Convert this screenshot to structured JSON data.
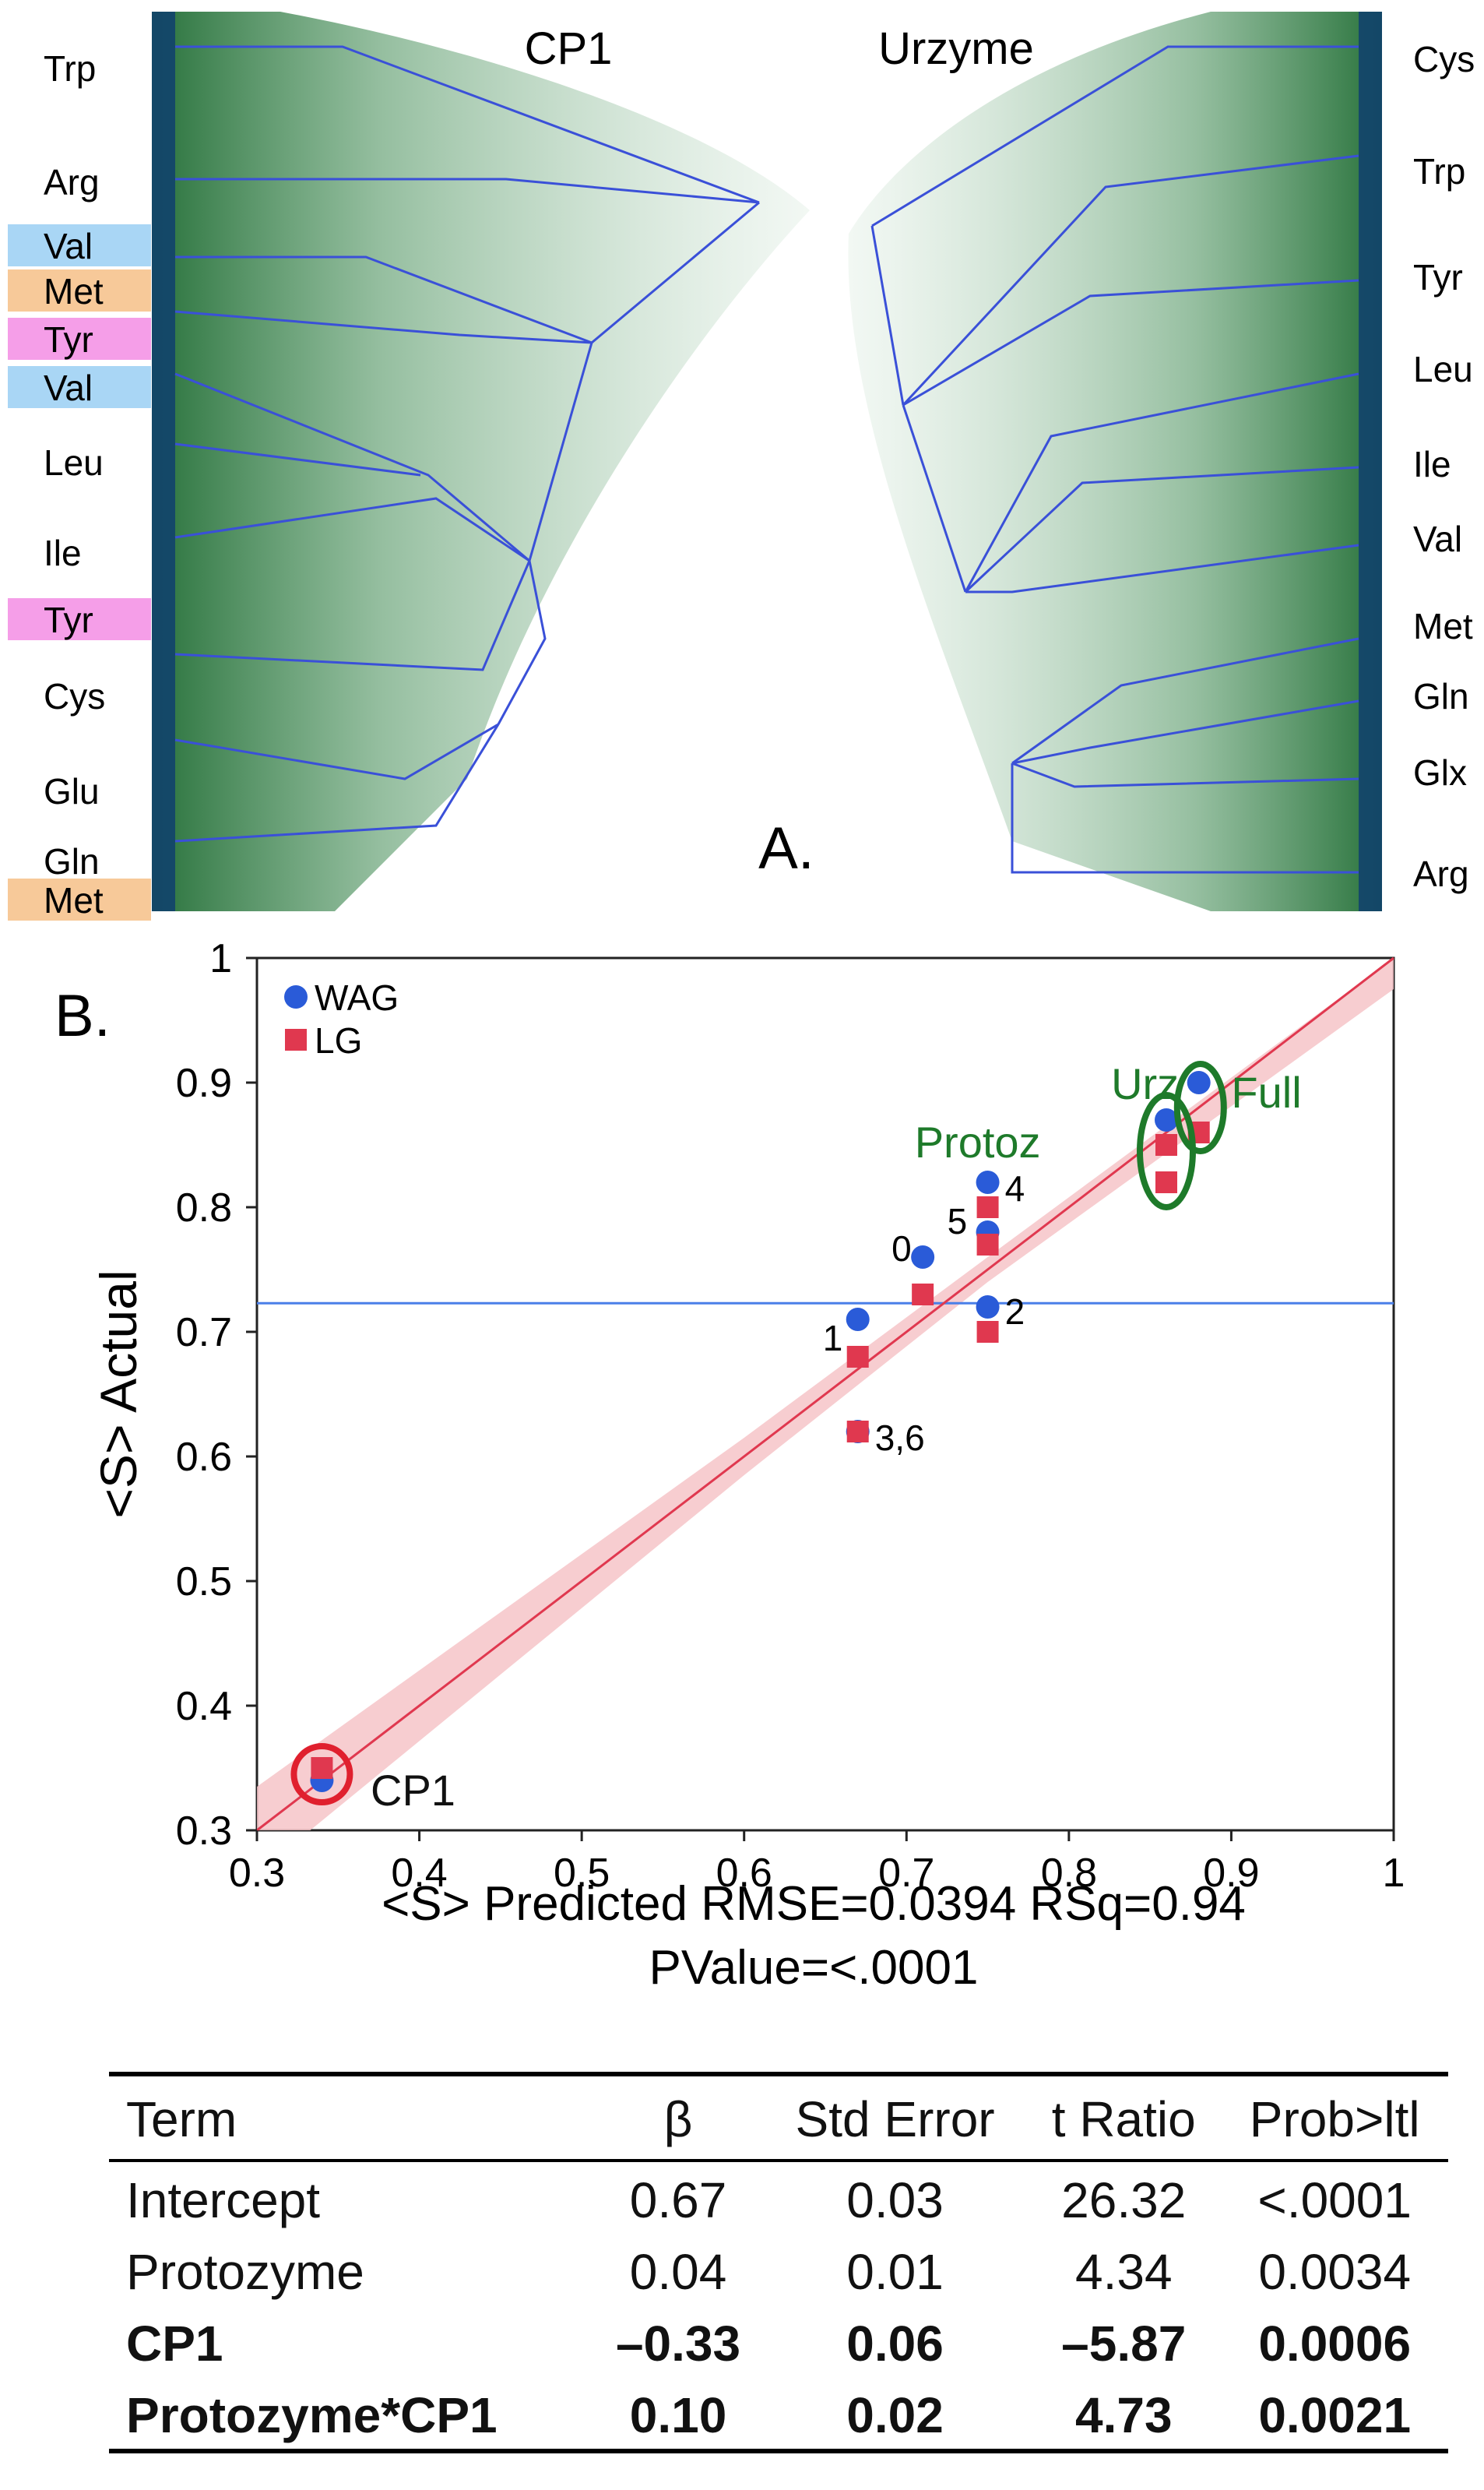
{
  "panel_a": {
    "title_left": "CP1",
    "title_right": "Urzyme",
    "panel_label": "A.",
    "left_labels": [
      {
        "text": "Trp",
        "highlight": ""
      },
      {
        "text": "Arg",
        "highlight": ""
      },
      {
        "text": "Val",
        "highlight": "#a9d6f5"
      },
      {
        "text": "Met",
        "highlight": "#f7c999"
      },
      {
        "text": "Tyr",
        "highlight": "#f59ee8"
      },
      {
        "text": "Val",
        "highlight": "#a9d6f5"
      },
      {
        "text": "Leu",
        "highlight": ""
      },
      {
        "text": "Ile",
        "highlight": ""
      },
      {
        "text": "Tyr",
        "highlight": "#f59ee8"
      },
      {
        "text": "Cys",
        "highlight": ""
      },
      {
        "text": "Glu",
        "highlight": ""
      },
      {
        "text": "Gln",
        "highlight": ""
      },
      {
        "text": "Met",
        "highlight": "#f7c999"
      }
    ],
    "right_labels": [
      "Cys",
      "Trp",
      "Tyr",
      "Leu",
      "Ile",
      "Val",
      "Met",
      "Gln",
      "Glx",
      "Arg"
    ],
    "colors": {
      "tree_line": "#3a50d8",
      "cloud": "#7fb38a",
      "cloud_dark": "#1e6b32",
      "tip_dark": "#0f3f6e"
    }
  },
  "chart_data": {
    "type": "scatter",
    "panel_label": "B.",
    "ylabel": "<S> Actual",
    "xlabel_line1": "<S> Predicted RMSE=0.0394 RSq=0.94",
    "xlabel_line2": "PValue=<.0001",
    "xlim": [
      0.3,
      1
    ],
    "ylim": [
      0.3,
      1
    ],
    "x_ticks": [
      "0.3",
      "0.4",
      "0.5",
      "0.6",
      "0.7",
      "0.8",
      "0.9",
      "1"
    ],
    "y_ticks": [
      "0.3",
      "0.4",
      "0.5",
      "0.6",
      "0.7",
      "0.8",
      "0.9",
      "1"
    ],
    "mean_line_y": 0.723,
    "fit_line": {
      "x": [
        0.3,
        1.0
      ],
      "y": [
        0.3,
        1.0
      ]
    },
    "series": [
      {
        "name": "WAG",
        "color": "#2a5bd8",
        "marker": "circle",
        "points": [
          [
            0.34,
            0.34
          ],
          [
            0.67,
            0.71
          ],
          [
            0.71,
            0.76
          ],
          [
            0.75,
            0.72
          ],
          [
            0.75,
            0.78
          ],
          [
            0.75,
            0.82
          ],
          [
            0.67,
            0.62
          ],
          [
            0.86,
            0.87
          ],
          [
            0.88,
            0.9
          ]
        ]
      },
      {
        "name": "LG",
        "color": "#e0384f",
        "marker": "square",
        "points": [
          [
            0.34,
            0.35
          ],
          [
            0.67,
            0.68
          ],
          [
            0.71,
            0.73
          ],
          [
            0.75,
            0.7
          ],
          [
            0.75,
            0.77
          ],
          [
            0.75,
            0.8
          ],
          [
            0.67,
            0.62
          ],
          [
            0.86,
            0.82
          ],
          [
            0.86,
            0.85
          ],
          [
            0.88,
            0.86
          ]
        ]
      }
    ],
    "point_labels": [
      {
        "text": "0",
        "x": 0.71,
        "y": 0.76
      },
      {
        "text": "1",
        "x": 0.67,
        "y": 0.71
      },
      {
        "text": "2",
        "x": 0.75,
        "y": 0.72
      },
      {
        "text": "3,6",
        "x": 0.67,
        "y": 0.62
      },
      {
        "text": "4",
        "x": 0.75,
        "y": 0.82
      },
      {
        "text": "5",
        "x": 0.75,
        "y": 0.78
      }
    ],
    "group_labels": [
      {
        "text": "Protoz",
        "color": "#1e7a2a"
      },
      {
        "text": "Urz",
        "color": "#1e7a2a"
      },
      {
        "text": "Full",
        "color": "#1e7a2a"
      },
      {
        "text": "CP1",
        "color": "#111111"
      }
    ],
    "colors": {
      "fit": "#e0384f",
      "band": "#f6c4c8",
      "mean": "#4a7fe8",
      "green_ring": "#1e7a2a",
      "red_ring": "#e0202e"
    }
  },
  "table": {
    "headers": [
      "Term",
      "β",
      "Std Error",
      "t Ratio",
      "Prob>ltl"
    ],
    "rows": [
      {
        "cells": [
          "Intercept",
          "0.67",
          "0.03",
          "26.32",
          "<.0001"
        ],
        "bold": false
      },
      {
        "cells": [
          "Protozyme",
          "0.04",
          "0.01",
          "4.34",
          "0.0034"
        ],
        "bold": false
      },
      {
        "cells": [
          "CP1",
          "–0.33",
          "0.06",
          "–5.87",
          "0.0006"
        ],
        "bold": true
      },
      {
        "cells": [
          "Protozyme*CP1",
          "0.10",
          "0.02",
          "4.73",
          "0.0021"
        ],
        "bold": true
      }
    ]
  }
}
